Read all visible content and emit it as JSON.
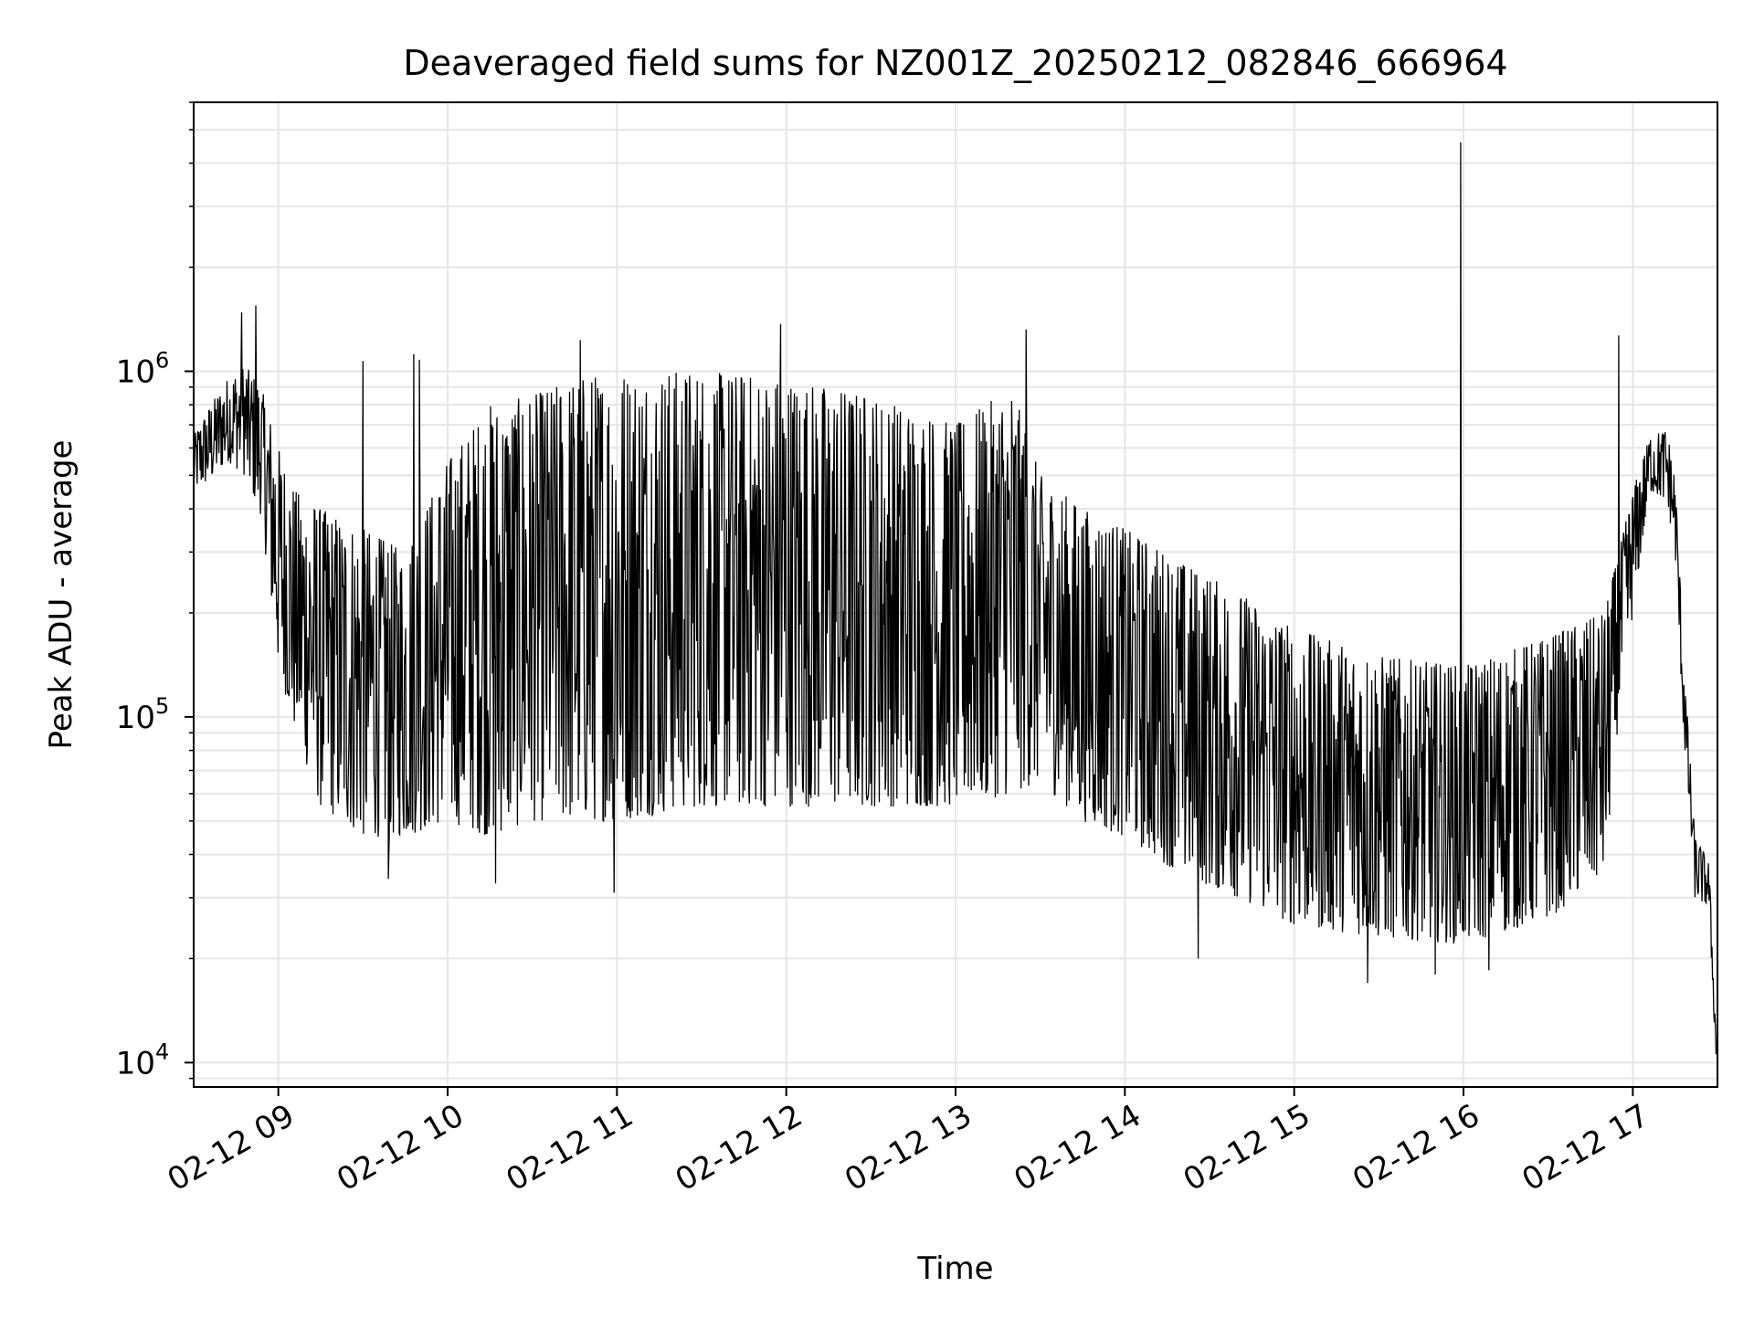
{
  "chart_data": {
    "type": "line",
    "title": "Deaveraged field sums for NZ001Z_20250212_082846_666964",
    "xlabel": "Time",
    "ylabel": "Peak ADU - average",
    "x_axis": {
      "type": "time",
      "range": [
        "2025-02-12T08:30:00",
        "2025-02-12T17:30:00"
      ],
      "ticks": [
        "2025-02-12T09:00:00",
        "2025-02-12T10:00:00",
        "2025-02-12T11:00:00",
        "2025-02-12T12:00:00",
        "2025-02-12T13:00:00",
        "2025-02-12T14:00:00",
        "2025-02-12T15:00:00",
        "2025-02-12T16:00:00",
        "2025-02-12T17:00:00"
      ],
      "tick_labels": [
        "02-12 09",
        "02-12 10",
        "02-12 11",
        "02-12 12",
        "02-12 13",
        "02-12 14",
        "02-12 15",
        "02-12 16",
        "02-12 17"
      ]
    },
    "y_axis": {
      "scale": "log",
      "range": [
        8500,
        6000000
      ],
      "ticks": [
        10000,
        100000,
        1000000
      ],
      "tick_labels": [
        {
          "base": "10",
          "exp": "4"
        },
        {
          "base": "10",
          "exp": "5"
        },
        {
          "base": "10",
          "exp": "6"
        }
      ]
    },
    "grid": true,
    "line_color": "#000000",
    "grid_color": "#e6e6e6",
    "series": [
      {
        "envelope": [
          {
            "t": "2025-02-12T08:30:00",
            "lo": 450000,
            "hi": 650000
          },
          {
            "t": "2025-02-12T08:36:00",
            "lo": 480000,
            "hi": 800000
          },
          {
            "t": "2025-02-12T08:42:00",
            "lo": 550000,
            "hi": 950000
          },
          {
            "t": "2025-02-12T08:48:00",
            "lo": 500000,
            "hi": 1050000
          },
          {
            "t": "2025-02-12T08:54:00",
            "lo": 380000,
            "hi": 900000
          },
          {
            "t": "2025-02-12T09:00:00",
            "lo": 140000,
            "hi": 600000
          },
          {
            "t": "2025-02-12T09:06:00",
            "lo": 90000,
            "hi": 450000
          },
          {
            "t": "2025-02-12T09:15:00",
            "lo": 55000,
            "hi": 400000
          },
          {
            "t": "2025-02-12T09:30:00",
            "lo": 45000,
            "hi": 350000
          },
          {
            "t": "2025-02-12T09:45:00",
            "lo": 45000,
            "hi": 300000
          },
          {
            "t": "2025-02-12T10:00:00",
            "lo": 50000,
            "hi": 550000
          },
          {
            "t": "2025-02-12T10:15:00",
            "lo": 45000,
            "hi": 800000
          },
          {
            "t": "2025-02-12T10:30:00",
            "lo": 50000,
            "hi": 850000
          },
          {
            "t": "2025-02-12T10:45:00",
            "lo": 50000,
            "hi": 950000
          },
          {
            "t": "2025-02-12T11:00:00",
            "lo": 50000,
            "hi": 1000000
          },
          {
            "t": "2025-02-12T11:30:00",
            "lo": 55000,
            "hi": 1000000
          },
          {
            "t": "2025-02-12T12:00:00",
            "lo": 55000,
            "hi": 950000
          },
          {
            "t": "2025-02-12T12:30:00",
            "lo": 55000,
            "hi": 850000
          },
          {
            "t": "2025-02-12T13:00:00",
            "lo": 55000,
            "hi": 700000
          },
          {
            "t": "2025-02-12T13:20:00",
            "lo": 60000,
            "hi": 900000
          },
          {
            "t": "2025-02-12T13:30:00",
            "lo": 65000,
            "hi": 500000
          },
          {
            "t": "2025-02-12T13:45:00",
            "lo": 50000,
            "hi": 400000
          },
          {
            "t": "2025-02-12T14:00:00",
            "lo": 45000,
            "hi": 350000
          },
          {
            "t": "2025-02-12T14:20:00",
            "lo": 35000,
            "hi": 280000
          },
          {
            "t": "2025-02-12T14:40:00",
            "lo": 30000,
            "hi": 230000
          },
          {
            "t": "2025-02-12T15:00:00",
            "lo": 25000,
            "hi": 180000
          },
          {
            "t": "2025-02-12T15:30:00",
            "lo": 23000,
            "hi": 150000
          },
          {
            "t": "2025-02-12T16:00:00",
            "lo": 22000,
            "hi": 140000
          },
          {
            "t": "2025-02-12T16:30:00",
            "lo": 26000,
            "hi": 170000
          },
          {
            "t": "2025-02-12T16:50:00",
            "lo": 35000,
            "hi": 200000
          },
          {
            "t": "2025-02-12T16:55:00",
            "lo": 100000,
            "hi": 300000
          },
          {
            "t": "2025-02-12T17:00:00",
            "lo": 200000,
            "hi": 450000
          },
          {
            "t": "2025-02-12T17:06:00",
            "lo": 450000,
            "hi": 650000
          },
          {
            "t": "2025-02-12T17:12:00",
            "lo": 420000,
            "hi": 680000
          },
          {
            "t": "2025-02-12T17:15:00",
            "lo": 300000,
            "hi": 500000
          },
          {
            "t": "2025-02-12T17:18:00",
            "lo": 90000,
            "hi": 150000
          },
          {
            "t": "2025-02-12T17:22:00",
            "lo": 30000,
            "hi": 45000
          },
          {
            "t": "2025-02-12T17:27:00",
            "lo": 28000,
            "hi": 38000
          },
          {
            "t": "2025-02-12T17:29:30",
            "lo": 10000,
            "hi": 12000
          }
        ],
        "spikes": [
          {
            "t": "2025-02-12T08:52:00",
            "value": 1550000
          },
          {
            "t": "2025-02-12T08:47:00",
            "value": 1480000
          },
          {
            "t": "2025-02-12T09:50:00",
            "value": 1080000
          },
          {
            "t": "2025-02-12T09:48:00",
            "value": 1120000
          },
          {
            "t": "2025-02-12T09:30:00",
            "value": 1070000
          },
          {
            "t": "2025-02-12T10:47:00",
            "value": 1230000
          },
          {
            "t": "2025-02-12T11:58:00",
            "value": 1370000
          },
          {
            "t": "2025-02-12T13:25:00",
            "value": 1320000
          },
          {
            "t": "2025-02-12T15:59:00",
            "value": 4600000
          },
          {
            "t": "2025-02-12T16:55:00",
            "value": 1270000
          },
          {
            "t": "2025-02-12T10:59:00",
            "value": 31000
          },
          {
            "t": "2025-02-12T09:39:00",
            "value": 34000
          },
          {
            "t": "2025-02-12T10:17:00",
            "value": 33000
          },
          {
            "t": "2025-02-12T15:26:00",
            "value": 17000
          },
          {
            "t": "2025-02-12T15:50:00",
            "value": 18000
          },
          {
            "t": "2025-02-12T16:09:00",
            "value": 18500
          },
          {
            "t": "2025-02-12T14:26:00",
            "value": 20000
          }
        ]
      }
    ]
  }
}
